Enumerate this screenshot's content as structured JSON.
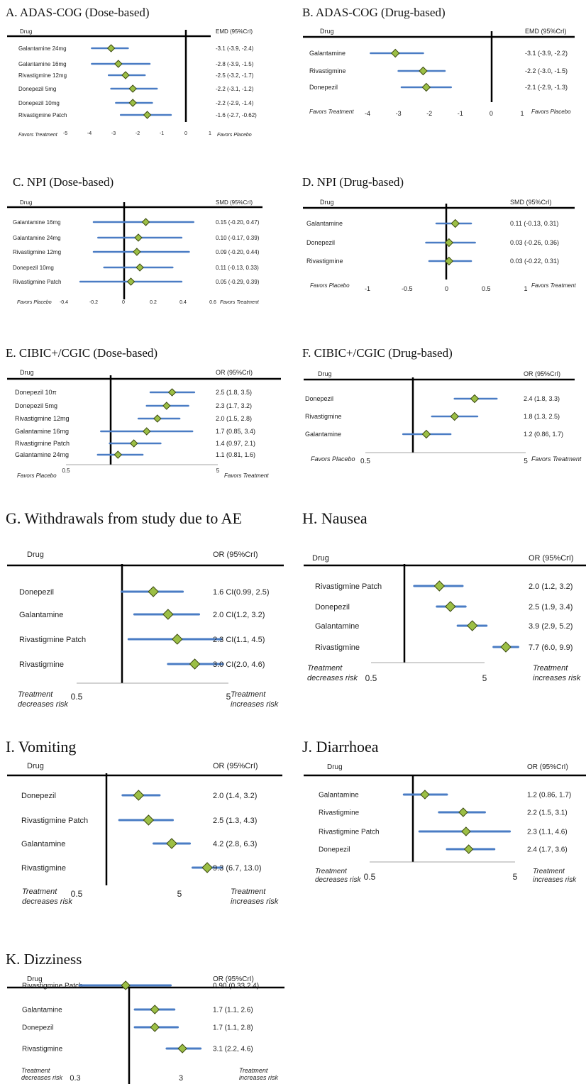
{
  "colors": {
    "ci_line": "#4a7cc4",
    "marker_fill": "#9cbf45",
    "marker_stroke": "#3b4a10",
    "rule": "#000000",
    "axis": "#888888"
  },
  "chart_data": [
    {
      "type": "forest",
      "panel": "A",
      "title": "A. ADAS-COG (Dose-based)",
      "header_left": "Drug",
      "header_right": "EMD   (95%CrI)",
      "x_ticks": [
        "-5",
        "-4",
        "-3",
        "-2",
        "-1",
        "0",
        "1"
      ],
      "x_ticks_values": [
        -5,
        -4,
        -3,
        -2,
        -1,
        0,
        1
      ],
      "xlim": [
        -5,
        1
      ],
      "ref_value": 0,
      "scale": "linear",
      "left_annotation": "Favors Treatment",
      "right_annotation": "Favors Placebo",
      "rows": [
        {
          "label": "Galantamine 24mg",
          "estimate": -3.1,
          "lower": -3.9,
          "upper": -2.4,
          "text": "-3.1 (-3.9, -2.4)"
        },
        {
          "label": "Galantamine 16mg",
          "estimate": -2.8,
          "lower": -3.9,
          "upper": -1.5,
          "text": "-2.8 (-3.9, -1.5)"
        },
        {
          "label": "Rivastigmine 12mg",
          "estimate": -2.5,
          "lower": -3.2,
          "upper": -1.7,
          "text": "-2.5 (-3.2, -1.7)"
        },
        {
          "label": "Donepezil 5mg",
          "estimate": -2.2,
          "lower": -3.1,
          "upper": -1.2,
          "text": "-2.2 (-3.1, -1.2)"
        },
        {
          "label": "Donepezil 10mg",
          "estimate": -2.2,
          "lower": -2.9,
          "upper": -1.4,
          "text": "-2.2 (-2.9, -1.4)"
        },
        {
          "label": "Rivastigmine Patch",
          "estimate": -1.6,
          "lower": -2.7,
          "upper": -0.62,
          "text": "-1.6 (-2.7, -0.62)"
        }
      ]
    },
    {
      "type": "forest",
      "panel": "B",
      "title": "B. ADAS-COG (Drug-based)",
      "header_left": "Drug",
      "header_right": "EMD    (95%CrI)",
      "x_ticks": [
        "-4",
        "-3",
        "-2",
        "-1",
        "0",
        "1"
      ],
      "x_ticks_values": [
        -4,
        -3,
        -2,
        -1,
        0,
        1
      ],
      "xlim": [
        -4,
        1
      ],
      "ref_value": 0,
      "scale": "linear",
      "left_annotation": "Favors Treatment",
      "right_annotation": "Favors Placebo",
      "rows": [
        {
          "label": "Galantamine",
          "estimate": -3.1,
          "lower": -3.9,
          "upper": -2.2,
          "text": "-3.1 (-3.9, -2.2)"
        },
        {
          "label": "Rivastigmine",
          "estimate": -2.2,
          "lower": -3.0,
          "upper": -1.5,
          "text": "-2.2 (-3.0, -1.5)"
        },
        {
          "label": "Donepezil",
          "estimate": -2.1,
          "lower": -2.9,
          "upper": -1.3,
          "text": "-2.1 (-2.9, -1.3)"
        }
      ]
    },
    {
      "type": "forest",
      "panel": "C",
      "title": "C.  NPI (Dose-based)",
      "header_left": "Drug",
      "header_right": "SMD   (95%CrI)",
      "x_ticks": [
        "-0.4",
        "-0.2",
        "0",
        "0.2",
        "0.4",
        "0.6"
      ],
      "x_ticks_values": [
        -0.4,
        -0.2,
        0,
        0.2,
        0.4,
        0.6
      ],
      "xlim": [
        -0.4,
        0.6
      ],
      "ref_value": 0,
      "scale": "linear",
      "left_annotation": "Favors Placebo",
      "right_annotation": "Favors Treatment",
      "rows": [
        {
          "label": "Galantamine 16mg",
          "estimate": 0.15,
          "lower": -0.2,
          "upper": 0.47,
          "text": "0.15 (-0.20, 0.47)"
        },
        {
          "label": "Galantamine  24mg",
          "estimate": 0.1,
          "lower": -0.17,
          "upper": 0.39,
          "text": "0.10 (-0.17, 0.39)"
        },
        {
          "label": "Rivastigmine 12mg",
          "estimate": 0.09,
          "lower": -0.2,
          "upper": 0.44,
          "text": "0.09 (-0.20, 0.44)"
        },
        {
          "label": "Donepezil 10mg",
          "estimate": 0.11,
          "lower": -0.13,
          "upper": 0.33,
          "text": "0.11 (-0.13, 0.33)"
        },
        {
          "label": "Rivastigmine Patch",
          "estimate": 0.05,
          "lower": -0.29,
          "upper": 0.39,
          "text": "0.05 (-0.29, 0.39)"
        }
      ]
    },
    {
      "type": "forest",
      "panel": "D",
      "title": "D.  NPI (Drug-based)",
      "header_left": "Drug",
      "header_right": "SMD    (95%CrI)",
      "x_ticks": [
        "-1",
        "-0.5",
        "0",
        "0.5",
        "1"
      ],
      "x_ticks_values": [
        -1,
        -0.5,
        0,
        0.5,
        1
      ],
      "xlim": [
        -1,
        1
      ],
      "ref_value": 0,
      "scale": "linear",
      "left_annotation": "Favors Placebo",
      "right_annotation": "Favors Treatment",
      "rows": [
        {
          "label": "Galantamine",
          "estimate": 0.11,
          "lower": -0.13,
          "upper": 0.31,
          "text": "0.11 (-0.13, 0.31)"
        },
        {
          "label": "Donepezil",
          "estimate": 0.03,
          "lower": -0.26,
          "upper": 0.36,
          "text": "0.03 (-0.26, 0.36)"
        },
        {
          "label": "Rivastigmine",
          "estimate": 0.03,
          "lower": -0.22,
          "upper": 0.31,
          "text": "0.03 (-0.22, 0.31)"
        }
      ]
    },
    {
      "type": "forest",
      "panel": "E",
      "title": "E.  CIBIC+/CGIC (Dose-based)",
      "header_left": "Drug",
      "header_right": "OR   (95%CrI)",
      "x_ticks": [
        "0.5",
        "5"
      ],
      "x_ticks_values": [
        0.5,
        5
      ],
      "xlim": [
        0.5,
        5
      ],
      "ref_value": 1,
      "scale": "log",
      "left_annotation": "Favors Placebo",
      "right_annotation": "Favors Treatment",
      "rows": [
        {
          "label": "Donepezil 10π",
          "estimate": 2.5,
          "lower": 1.8,
          "upper": 3.5,
          "text": "2.5 (1.8, 3.5)"
        },
        {
          "label": "Donepezil 5mg",
          "estimate": 2.3,
          "lower": 1.7,
          "upper": 3.2,
          "text": "2.3 (1.7, 3.2)"
        },
        {
          "label": "Rivastigmine 12mg",
          "estimate": 2.0,
          "lower": 1.5,
          "upper": 2.8,
          "text": "2.0 (1.5, 2.8)"
        },
        {
          "label": "Galantamine 16mg",
          "estimate": 1.7,
          "lower": 0.85,
          "upper": 3.4,
          "text": "1.7 (0.85, 3.4)"
        },
        {
          "label": "Rivastigmine Patch",
          "estimate": 1.4,
          "lower": 0.97,
          "upper": 2.1,
          "text": "1.4 (0.97, 2.1)"
        },
        {
          "label": "Galantamine 24mg",
          "estimate": 1.1,
          "lower": 0.81,
          "upper": 1.6,
          "text": "1.1 (0.81, 1.6)"
        }
      ]
    },
    {
      "type": "forest",
      "panel": "F",
      "title": "F.  CIBIC+/CGIC (Drug-based)",
      "header_left": "Drug",
      "header_right": "OR    (95%CrI)",
      "x_ticks": [
        "0.5",
        "5"
      ],
      "x_ticks_values": [
        0.5,
        5
      ],
      "xlim": [
        0.5,
        5
      ],
      "ref_value": 1,
      "scale": "log",
      "left_annotation": "Favors Placebo",
      "right_annotation": "Favors Treatment",
      "rows": [
        {
          "label": "Donepezil",
          "estimate": 2.4,
          "lower": 1.8,
          "upper": 3.3,
          "text": "2.4 (1.8, 3.3)"
        },
        {
          "label": "Rivastigmine",
          "estimate": 1.8,
          "lower": 1.3,
          "upper": 2.5,
          "text": "1.8 (1.3, 2.5)"
        },
        {
          "label": "Galantamine",
          "estimate": 1.2,
          "lower": 0.86,
          "upper": 1.7,
          "text": "1.2 (0.86, 1.7)"
        }
      ]
    },
    {
      "type": "forest",
      "panel": "G",
      "title": "G.  Withdrawals from study due to AE",
      "header_left": "Drug",
      "header_right": "OR     (95%CrI)",
      "x_ticks": [
        "0.5",
        "5"
      ],
      "x_ticks_values": [
        0.5,
        5
      ],
      "xlim": [
        0.5,
        5
      ],
      "ref_value": 1,
      "scale": "log",
      "left_annotation": [
        "Treatment",
        "decreases risk"
      ],
      "right_annotation": [
        "Treatment",
        "increases risk"
      ],
      "rows": [
        {
          "label": "Donepezil",
          "estimate": 1.6,
          "lower": 0.99,
          "upper": 2.5,
          "text": "1.6 CI(0.99, 2.5)"
        },
        {
          "label": "Galantamine",
          "estimate": 2.0,
          "lower": 1.2,
          "upper": 3.2,
          "text": "2.0 CI(1.2, 3.2)"
        },
        {
          "label": "Rivastigmine Patch",
          "estimate": 2.3,
          "lower": 1.1,
          "upper": 4.5,
          "text": "2.3 CI(1.1, 4.5)"
        },
        {
          "label": "Rivastigmine",
          "estimate": 3.0,
          "lower": 2.0,
          "upper": 4.6,
          "text": "3.0 CI(2.0, 4.6)"
        }
      ]
    },
    {
      "type": "forest",
      "panel": "H",
      "title": "H.  Nausea",
      "header_left": "Drug",
      "header_right": "OR     (95%CrI)",
      "x_ticks": [
        "0.5",
        "5"
      ],
      "x_ticks_values": [
        0.5,
        5
      ],
      "xlim": [
        0.5,
        5
      ],
      "ref_value": 1,
      "scale": "log",
      "left_annotation": [
        "Treatment",
        "decreases risk"
      ],
      "right_annotation": [
        "Treatment",
        "increases risk"
      ],
      "rows": [
        {
          "label": "Rivastigmine Patch",
          "estimate": 2.0,
          "lower": 1.2,
          "upper": 3.2,
          "text": "2.0 (1.2, 3.2)"
        },
        {
          "label": "Donepezil",
          "estimate": 2.5,
          "lower": 1.9,
          "upper": 3.4,
          "text": "2.5 (1.9, 3.4)"
        },
        {
          "label": "Galantamine",
          "estimate": 3.9,
          "lower": 2.9,
          "upper": 5.2,
          "text": "3.9 (2.9, 5.2)"
        },
        {
          "label": "Rivastigmine",
          "estimate": 7.7,
          "lower": 6.0,
          "upper": 9.9,
          "text": "7.7 (6.0, 9.9)"
        }
      ]
    },
    {
      "type": "forest",
      "panel": "I",
      "title": "I.  Vomiting",
      "header_left": "Drug",
      "header_right": "OR     (95%CrI)",
      "x_ticks": [
        "0.5",
        "5"
      ],
      "x_ticks_values": [
        0.5,
        5
      ],
      "xlim": [
        0.5,
        5
      ],
      "ref_value": 1,
      "scale": "log",
      "left_annotation": [
        "Treatment",
        "decreases risk"
      ],
      "right_annotation": [
        "Treatment",
        "increases risk"
      ],
      "rows": [
        {
          "label": "Donepezil",
          "estimate": 2.0,
          "lower": 1.4,
          "upper": 3.2,
          "text": "2.0 (1.4, 3.2)"
        },
        {
          "label": "Rivastigmine Patch",
          "estimate": 2.5,
          "lower": 1.3,
          "upper": 4.3,
          "text": "2.5 (1.3, 4.3)"
        },
        {
          "label": "Galantamine",
          "estimate": 4.2,
          "lower": 2.8,
          "upper": 6.3,
          "text": "4.2 (2.8, 6.3)"
        },
        {
          "label": "Rivastigmine",
          "estimate": 9.3,
          "lower": 6.7,
          "upper": 13.0,
          "text": "9.3 (6.7, 13.0)"
        }
      ]
    },
    {
      "type": "forest",
      "panel": "J",
      "title": "J.  Diarrhoea",
      "header_left": "Drug",
      "header_right": "OR    (95%CrI)",
      "x_ticks": [
        "0.5",
        "5"
      ],
      "x_ticks_values": [
        0.5,
        5
      ],
      "xlim": [
        0.5,
        5
      ],
      "ref_value": 1,
      "scale": "log",
      "left_annotation": [
        "Treatment",
        "decreases risk"
      ],
      "right_annotation": [
        "Treatment",
        "increases risk"
      ],
      "rows": [
        {
          "label": "Galantamine",
          "estimate": 1.2,
          "lower": 0.86,
          "upper": 1.7,
          "text": "1.2 (0.86, 1.7)"
        },
        {
          "label": "Rivastigmine",
          "estimate": 2.2,
          "lower": 1.5,
          "upper": 3.1,
          "text": "2.2 (1.5, 3.1)"
        },
        {
          "label": "Rivastigmine Patch",
          "estimate": 2.3,
          "lower": 1.1,
          "upper": 4.6,
          "text": "2.3 (1.1, 4.6)"
        },
        {
          "label": "Donepezil",
          "estimate": 2.4,
          "lower": 1.7,
          "upper": 3.6,
          "text": "2.4 (1.7, 3.6)"
        }
      ]
    },
    {
      "type": "forest",
      "panel": "K",
      "title": "K.  Dizziness",
      "header_left": "Drug",
      "header_right": "OR    (95%CrI)",
      "x_ticks": [
        "0.3",
        "3"
      ],
      "x_ticks_values": [
        0.3,
        3
      ],
      "xlim": [
        0.3,
        3
      ],
      "ref_value": 1,
      "scale": "log",
      "left_annotation": [
        "Treatment",
        "decreases risk"
      ],
      "right_annotation": [
        "Treatment",
        "increases risk"
      ],
      "rows": [
        {
          "label": "Rivastigmine Patch",
          "estimate": 0.9,
          "lower": 0.33,
          "upper": 2.4,
          "text": "0.90 (0.33 2.4)"
        },
        {
          "label": "Galantamine",
          "estimate": 1.7,
          "lower": 1.1,
          "upper": 2.6,
          "text": "1.7 (1.1, 2.6)"
        },
        {
          "label": "Donepezil",
          "estimate": 1.7,
          "lower": 1.1,
          "upper": 2.8,
          "text": "1.7 (1.1, 2.8)"
        },
        {
          "label": "Rivastigmine",
          "estimate": 3.1,
          "lower": 2.2,
          "upper": 4.6,
          "text": "3.1 (2.2, 4.6)"
        }
      ]
    }
  ]
}
